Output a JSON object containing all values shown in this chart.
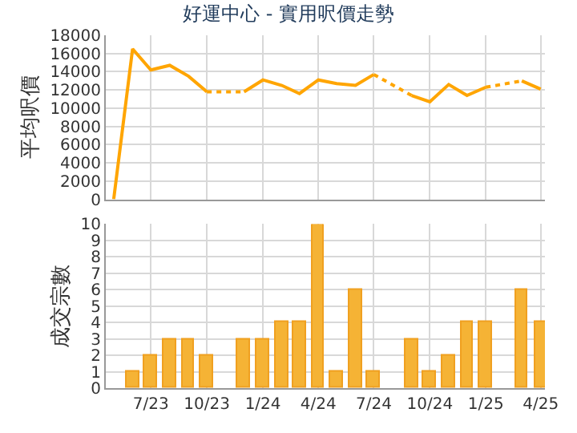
{
  "chart_data": [
    {
      "type": "line",
      "title": "好運中心 - 實用呎價走勢",
      "ylabel": "平均呎價",
      "x": [
        "2023-05",
        "2023-06",
        "2023-07",
        "2023-08",
        "2023-09",
        "2023-10",
        "2023-11",
        "2023-12",
        "2024-01",
        "2024-02",
        "2024-03",
        "2024-04",
        "2024-05",
        "2024-06",
        "2024-07",
        "2024-08",
        "2024-09",
        "2024-10",
        "2024-11",
        "2024-12",
        "2025-01",
        "2025-02",
        "2025-03",
        "2025-04"
      ],
      "series": [
        {
          "color": "#ffa500",
          "values": [
            0,
            16500,
            14200,
            14700,
            13500,
            11800,
            null,
            11800,
            13100,
            12500,
            11600,
            13100,
            12700,
            12500,
            13700,
            null,
            11400,
            10700,
            12600,
            11400,
            12300,
            null,
            13000,
            12100
          ]
        }
      ],
      "xlim": [
        "2023-04-18",
        "2025-04-08"
      ],
      "xticks": [
        {
          "value": "2023-07",
          "label": null
        },
        {
          "value": "2023-10",
          "label": null
        },
        {
          "value": "2024-01",
          "label": null
        },
        {
          "value": "2024-04",
          "label": null
        },
        {
          "value": "2024-07",
          "label": null
        },
        {
          "value": "2024-10",
          "label": null
        },
        {
          "value": "2025-01",
          "label": null
        },
        {
          "value": "2025-04",
          "label": null
        }
      ],
      "ylim": [
        0,
        18000
      ],
      "yticks": [
        0,
        2000,
        4000,
        6000,
        8000,
        10000,
        12000,
        14000,
        16000,
        18000
      ],
      "grid": true,
      "marker": "none",
      "line_style": "solid",
      "tick_labels": "y"
    },
    {
      "type": "bar",
      "ylabel": "成交宗數",
      "x": [
        "2023-06",
        "2023-07",
        "2023-08",
        "2023-09",
        "2023-10",
        "2023-12",
        "2024-01",
        "2024-02",
        "2024-03",
        "2024-04",
        "2024-05",
        "2024-06",
        "2024-07",
        "2024-09",
        "2024-10",
        "2024-11",
        "2024-12",
        "2025-01",
        "2025-03",
        "2025-04"
      ],
      "series": [
        {
          "color": "#f5b335",
          "values": [
            1,
            2,
            3,
            3,
            2,
            3,
            3,
            4,
            4,
            10,
            1,
            6,
            1,
            3,
            1,
            2,
            4,
            4,
            6,
            4
          ]
        }
      ],
      "xlim": [
        "2023-04-18",
        "2025-04-08"
      ],
      "xticks": [
        {
          "value": "2023-07",
          "label": "7/23"
        },
        {
          "value": "2023-10",
          "label": "10/23"
        },
        {
          "value": "2024-01",
          "label": "1/24"
        },
        {
          "value": "2024-04",
          "label": "4/24"
        },
        {
          "value": "2024-07",
          "label": "7/24"
        },
        {
          "value": "2024-10",
          "label": "10/24"
        },
        {
          "value": "2025-01",
          "label": "1/25"
        },
        {
          "value": "2025-04",
          "label": "4/25"
        }
      ],
      "ylim": [
        0,
        10
      ],
      "yticks": [
        0,
        1,
        2,
        3,
        4,
        5,
        6,
        7,
        8,
        9,
        10
      ],
      "grid": true
    }
  ]
}
